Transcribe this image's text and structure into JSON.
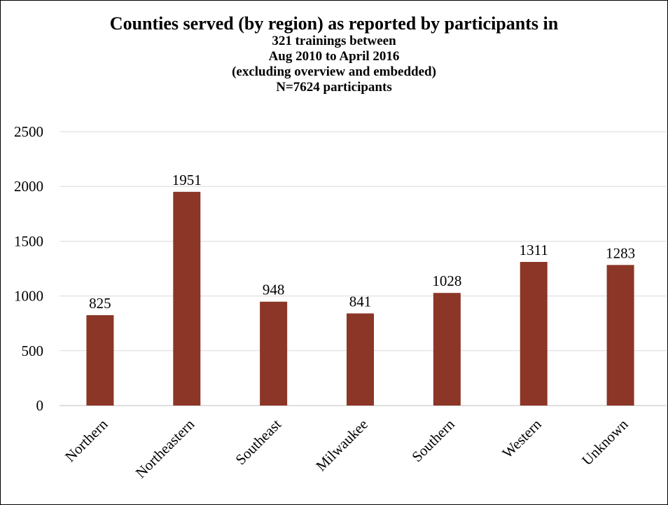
{
  "chart_data": {
    "type": "bar",
    "title": "Counties served (by region) as reported by participants in",
    "subtitle_lines": [
      "321 trainings between",
      "Aug 2010 to April 2016",
      "(excluding overview and embedded)",
      "N=7624 participants"
    ],
    "categories": [
      "Northern",
      "Northeastern",
      "Southeast",
      "Milwaukee",
      "Southern",
      "Western",
      "Unknown"
    ],
    "values": [
      825,
      1951,
      948,
      841,
      1028,
      1311,
      1283
    ],
    "data_labels": [
      "825",
      "1951",
      "948",
      "841",
      "1028",
      "1311",
      "1283"
    ],
    "yticks": [
      "0",
      "500",
      "1000",
      "1500",
      "2000",
      "2500"
    ],
    "ytick_values": [
      0,
      500,
      1000,
      1500,
      2000,
      2500
    ],
    "ylim": [
      0,
      2500
    ],
    "grid": true,
    "legend": "none",
    "xlabel": "",
    "ylabel": "",
    "bar_color": "#8B3626",
    "grid_color": "#D9D9D9"
  }
}
